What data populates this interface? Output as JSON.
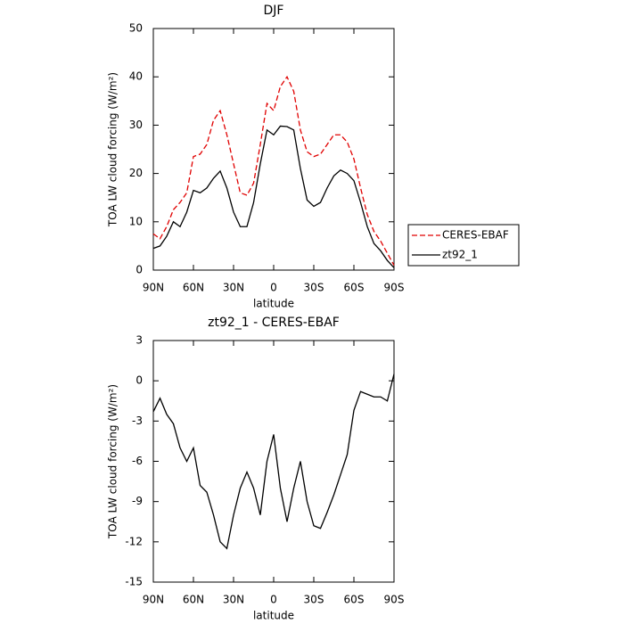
{
  "chart_data": [
    {
      "type": "line",
      "title": "DJF",
      "xlabel": "latitude",
      "ylabel": "TOA LW cloud forcing (W/m²)",
      "x": [
        90,
        85,
        80,
        75,
        70,
        65,
        60,
        55,
        50,
        45,
        40,
        35,
        30,
        25,
        20,
        15,
        10,
        5,
        0,
        -5,
        -10,
        -15,
        -20,
        -25,
        -30,
        -35,
        -40,
        -45,
        -50,
        -55,
        -60,
        -65,
        -70,
        -75,
        -80,
        -85,
        -90
      ],
      "series": [
        {
          "name": "CERES-EBAF",
          "color": "#e00000",
          "dash": true,
          "values": [
            7.5,
            6.5,
            9,
            12.5,
            14,
            16,
            23.5,
            24,
            26,
            31,
            33,
            28,
            22,
            16,
            15.5,
            18,
            26,
            34.5,
            33,
            38,
            40,
            37,
            29,
            24.5,
            23.5,
            24,
            26,
            28,
            28,
            26.5,
            23,
            17,
            11.5,
            8,
            6,
            3.5,
            1
          ]
        },
        {
          "name": "zt92_1",
          "color": "#000000",
          "dash": false,
          "values": [
            4.5,
            5,
            7,
            10,
            9,
            12,
            16.5,
            16,
            17,
            19,
            20.5,
            17,
            12,
            9,
            9,
            14,
            22,
            29,
            28,
            29.8,
            29.7,
            29,
            21,
            14.5,
            13.2,
            14,
            17,
            19.5,
            20.7,
            20,
            18.5,
            14,
            9,
            5.5,
            4,
            2,
            0.5
          ]
        }
      ],
      "xlim": [
        90,
        -90
      ],
      "xticks": [
        {
          "value": 90,
          "label": "90N"
        },
        {
          "value": 60,
          "label": "60N"
        },
        {
          "value": 30,
          "label": "30N"
        },
        0,
        {
          "value": -30,
          "label": "30S"
        },
        {
          "value": -60,
          "label": "60S"
        },
        {
          "value": -90,
          "label": "90S"
        }
      ],
      "ylim": [
        0,
        50
      ],
      "yticks": [
        0,
        10,
        20,
        30,
        40,
        50
      ],
      "legend": "right"
    },
    {
      "type": "line",
      "title": "zt92_1 - CERES-EBAF",
      "xlabel": "latitude",
      "ylabel": "TOA LW cloud forcing (W/m²)",
      "x": [
        90,
        85,
        80,
        75,
        70,
        65,
        60,
        55,
        50,
        45,
        40,
        35,
        30,
        25,
        20,
        15,
        10,
        5,
        0,
        -5,
        -10,
        -15,
        -20,
        -25,
        -30,
        -35,
        -40,
        -45,
        -50,
        -55,
        -60,
        -65,
        -70,
        -75,
        -80,
        -85,
        -90
      ],
      "series": [
        {
          "color": "#000000",
          "dash": false,
          "values": [
            -2.3,
            -1.3,
            -2.5,
            -3.2,
            -5,
            -6,
            -5,
            -7.8,
            -8.3,
            -10,
            -12,
            -12.5,
            -10,
            -8,
            -6.8,
            -8,
            -10,
            -6,
            -4,
            -8,
            -10.5,
            -8,
            -6,
            -9,
            -10.8,
            -11,
            -9.8,
            -8.5,
            -7,
            -5.5,
            -2.2,
            -0.8,
            -1,
            -1.2,
            -1.2,
            -1.5,
            0.5
          ]
        }
      ],
      "xlim": [
        90,
        -90
      ],
      "xticks": [
        {
          "value": 90,
          "label": "90N"
        },
        {
          "value": 60,
          "label": "60N"
        },
        {
          "value": 30,
          "label": "30N"
        },
        0,
        {
          "value": -30,
          "label": "30S"
        },
        {
          "value": -60,
          "label": "60S"
        },
        {
          "value": -90,
          "label": "90S"
        }
      ],
      "ylim": [
        -15,
        3
      ],
      "yticks": [
        -15,
        -12,
        -9,
        -6,
        -3,
        0,
        3
      ]
    }
  ]
}
